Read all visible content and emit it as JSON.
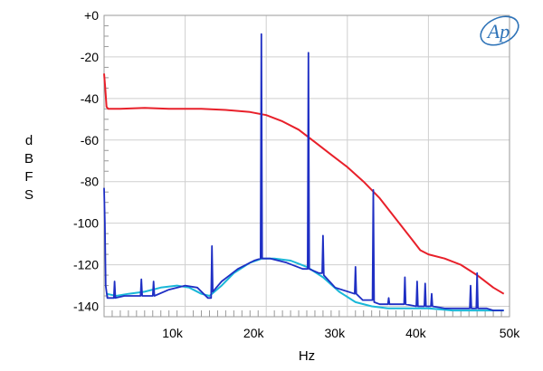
{
  "chart_data": {
    "type": "line",
    "title": "",
    "xlabel": "Hz",
    "ylabel": [
      "d",
      "B",
      "F",
      "S"
    ],
    "xlim": [
      0,
      50000
    ],
    "ylim": [
      -145,
      0
    ],
    "x_ticks": [
      {
        "value": 10000,
        "label": "10k"
      },
      {
        "value": 20000,
        "label": "20k"
      },
      {
        "value": 30000,
        "label": "30k"
      },
      {
        "value": 40000,
        "label": "40k"
      },
      {
        "value": 50000,
        "label": "50k"
      }
    ],
    "y_ticks": [
      {
        "value": 0,
        "label": "+0"
      },
      {
        "value": -20,
        "label": "-20"
      },
      {
        "value": -40,
        "label": "-40"
      },
      {
        "value": -60,
        "label": "-60"
      },
      {
        "value": -80,
        "label": "-80"
      },
      {
        "value": -100,
        "label": "-100"
      },
      {
        "value": -120,
        "label": "-120"
      },
      {
        "value": -140,
        "label": "-140"
      }
    ],
    "grid": true,
    "logo": {
      "text": "Ap",
      "color": "#2e73b8"
    },
    "series": [
      {
        "color": "#e8202a",
        "x": [
          0,
          150,
          300,
          500,
          2000,
          5000,
          8000,
          12000,
          15000,
          18000,
          20000,
          22000,
          24000,
          26000,
          28000,
          30000,
          32000,
          34000,
          36000,
          38000,
          39000,
          40000,
          42000,
          44000,
          46000,
          48000,
          49300
        ],
        "y": [
          -28,
          -35,
          -44,
          -45,
          -45,
          -44.5,
          -45,
          -45,
          -45.5,
          -46.5,
          -48,
          -51,
          -55,
          -61,
          -67,
          -73,
          -80,
          -88,
          -98,
          -108,
          -113,
          -115,
          -117,
          -120,
          -125,
          -131,
          -134
        ]
      },
      {
        "color": "#1ab7d8",
        "x": [
          300,
          1500,
          3000,
          5000,
          7000,
          9000,
          10500,
          12000,
          13000,
          14500,
          16000,
          18000,
          19500,
          21000,
          23000,
          25000,
          27000,
          29000,
          31000,
          33000,
          35000,
          37000,
          40000,
          43000,
          46000,
          49300
        ],
        "y": [
          -134,
          -135,
          -134,
          -133,
          -131,
          -130,
          -131,
          -134,
          -135,
          -130,
          -124,
          -119,
          -117,
          -117,
          -118,
          -121,
          -126,
          -133,
          -138,
          -140,
          -141,
          -141,
          -141,
          -142,
          -142,
          -142
        ]
      },
      {
        "color": "#1f2fc4",
        "x": [
          0,
          100,
          200,
          400,
          1200,
          1300,
          1400,
          2500,
          4500,
          4600,
          4700,
          6000,
          6100,
          6200,
          8000,
          10000,
          11500,
          12800,
          13200,
          13300,
          13400,
          14500,
          16500,
          18500,
          19300,
          19400,
          19500,
          20500,
          22500,
          24500,
          25100,
          25200,
          25300,
          26500,
          26900,
          27000,
          27100,
          28500,
          30900,
          31000,
          31100,
          31900,
          33100,
          33200,
          33300,
          34000,
          35000,
          35100,
          35200,
          37000,
          37100,
          37200,
          38500,
          38600,
          38700,
          39500,
          39600,
          39700,
          40300,
          40400,
          40500,
          42000,
          44500,
          45100,
          45200,
          45300,
          45900,
          46000,
          46100,
          46500,
          47000,
          47100,
          47200,
          48000,
          49300
        ],
        "y": [
          -83,
          -100,
          -130,
          -136,
          -136,
          -128,
          -136,
          -135,
          -135,
          -127,
          -135,
          -135,
          -128,
          -135,
          -132,
          -130,
          -131,
          -136,
          -136,
          -111,
          -133,
          -128,
          -122,
          -118,
          -117,
          -9,
          -117,
          -117,
          -119,
          -122,
          -122,
          -18,
          -122,
          -124,
          -124,
          -106,
          -125,
          -131,
          -134,
          -121,
          -134,
          -137,
          -137,
          -84,
          -138,
          -139,
          -139,
          -136,
          -139,
          -139,
          -126,
          -139,
          -140,
          -128,
          -140,
          -140,
          -129,
          -140,
          -140,
          -134,
          -140,
          -141,
          -141,
          -141,
          -130,
          -141,
          -141,
          -124,
          -141,
          -141,
          -141,
          -141,
          -141,
          -142,
          -142
        ]
      }
    ]
  }
}
